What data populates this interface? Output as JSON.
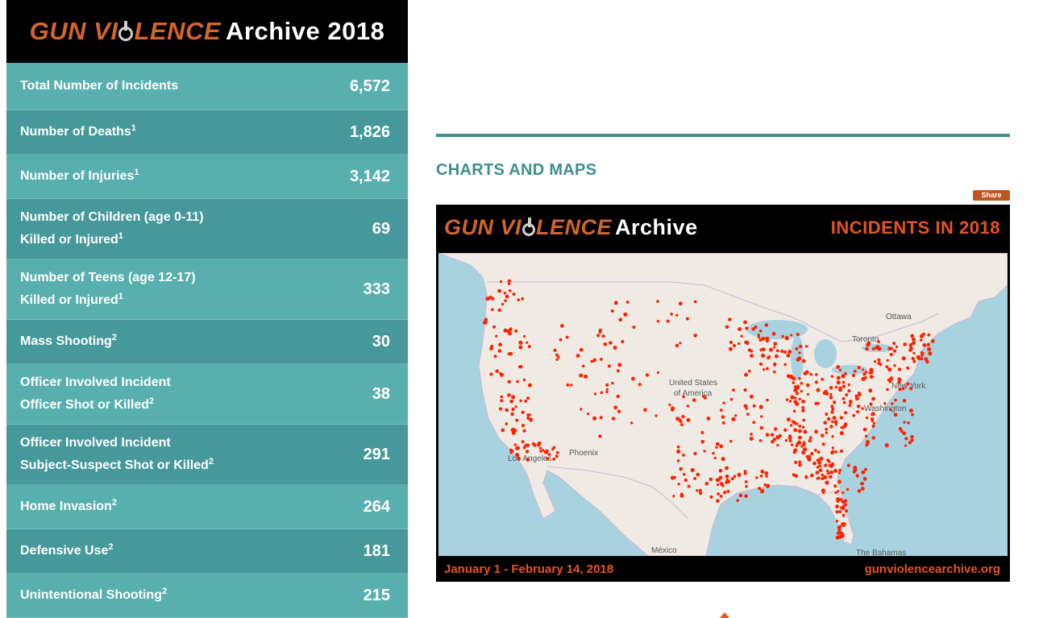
{
  "left_header": {
    "logo_main": "GUN VI",
    "logo_main_end": "LENCE",
    "logo_suffix": "Archive 2018"
  },
  "stats": [
    {
      "line1": "Total Number of Incidents",
      "line2": "",
      "sup": "",
      "value": "6,572"
    },
    {
      "line1": "Number of Deaths",
      "line2": "",
      "sup": "1",
      "value": "1,826"
    },
    {
      "line1": "Number of Injuries",
      "line2": "",
      "sup": "1",
      "value": "3,142"
    },
    {
      "line1": "Number of Children (age 0-11)",
      "line2": "Killed or Injured",
      "sup": "1",
      "value": "69"
    },
    {
      "line1": "Number of Teens (age 12-17)",
      "line2": "Killed or Injured",
      "sup": "1",
      "value": "333"
    },
    {
      "line1": "Mass Shooting",
      "line2": "",
      "sup": "2",
      "value": "30"
    },
    {
      "line1": "Officer Involved Incident",
      "line2": "Officer Shot or Killed",
      "sup": "2",
      "value": "38"
    },
    {
      "line1": "Officer Involved Incident",
      "line2": "Subject-Suspect Shot or Killed",
      "sup": "2",
      "value": "291"
    },
    {
      "line1": "Home Invasion",
      "line2": "",
      "sup": "2",
      "value": "264"
    },
    {
      "line1": "Defensive Use",
      "line2": "",
      "sup": "2",
      "value": "181"
    },
    {
      "line1": "Unintentional Shooting",
      "line2": "",
      "sup": "2",
      "value": "215"
    }
  ],
  "section": {
    "title": "CHARTS AND MAPS",
    "share_label": "Share"
  },
  "map": {
    "logo_main": "GUN VI",
    "logo_main_end": "LENCE",
    "logo_suffix": "Archive",
    "title": "INCIDENTS IN 2018",
    "date_range": "January 1 - February 14, 2018",
    "url": "gunviolencearchive.org",
    "labels": {
      "ottawa": "Ottawa",
      "toronto": "Toronto",
      "us1": "United States",
      "us2": "of America",
      "new_york": "New York",
      "washington": "Washington",
      "phoenix": "Phoenix",
      "los_angeles": "Los Angeles",
      "mexico": "México",
      "bahamas": "The Bahamas"
    },
    "colors": {
      "ocean": "#a9d2e0",
      "land": "#efebe4",
      "dot": "#ff2200",
      "lakes": "#a9d2e0"
    }
  }
}
